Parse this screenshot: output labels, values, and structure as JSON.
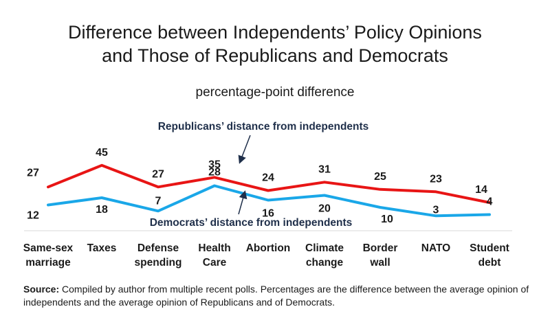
{
  "title_lines": [
    "Difference between Independents’ Policy Opinions",
    "and Those of Republicans and Democrats"
  ],
  "subtitle": "percentage-point difference",
  "chart_data": {
    "type": "line",
    "categories": [
      [
        "Same-sex",
        "marriage"
      ],
      [
        "Taxes"
      ],
      [
        "Defense",
        "spending"
      ],
      [
        "Health",
        "Care"
      ],
      [
        "Abortion"
      ],
      [
        "Climate",
        "change"
      ],
      [
        "Border",
        "wall"
      ],
      [
        "NATO"
      ],
      [
        "Student",
        "debt"
      ]
    ],
    "series": [
      {
        "name": "Republicans’ distance from independents",
        "values": [
          27,
          45,
          27,
          35,
          24,
          31,
          25,
          23,
          14
        ],
        "color": "#e81515"
      },
      {
        "name": "Democrats’ distance from independents",
        "values": [
          12,
          18,
          7,
          28,
          16,
          20,
          10,
          3,
          4
        ],
        "color": "#1aa7e8"
      }
    ],
    "grid": false,
    "legend": "annotations with arrows"
  },
  "source_label": "Source:",
  "source_text": "Compiled by author from multiple recent polls. Percentages are the difference between the average opinion of independents and the average opinion of Republicans and of Democrats."
}
